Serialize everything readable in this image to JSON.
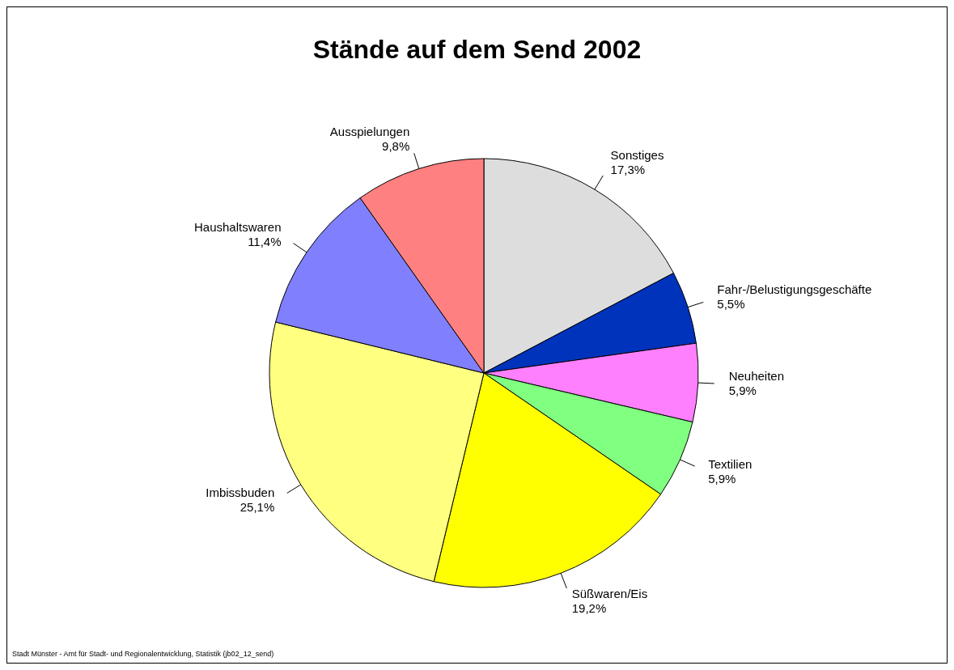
{
  "chart_data": {
    "type": "pie",
    "title": "Stände auf dem Send 2002",
    "categories": [
      "Sonstiges",
      "Fahr-/Belustigungsgeschäfte",
      "Neuheiten",
      "Textilien",
      "Süßwaren/Eis",
      "Imbissbuden",
      "Haushaltswaren",
      "Ausspielungen"
    ],
    "values": [
      17.3,
      5.5,
      5.9,
      5.9,
      19.2,
      25.1,
      11.4,
      9.8
    ],
    "colors": [
      "#dddddd",
      "#0033bb",
      "#ff80ff",
      "#80ff80",
      "#ffff00",
      "#ffff80",
      "#8080ff",
      "#ff8080"
    ],
    "value_labels": [
      "17,3%",
      "5,5%",
      "5,9%",
      "5,9%",
      "19,2%",
      "25,1%",
      "11,4%",
      "9,8%"
    ],
    "annotations": [
      "Stadt Münster - Amt für Stadt- und Regionalentwicklung, Statistik (jb02_12_send)"
    ],
    "legend": false
  }
}
